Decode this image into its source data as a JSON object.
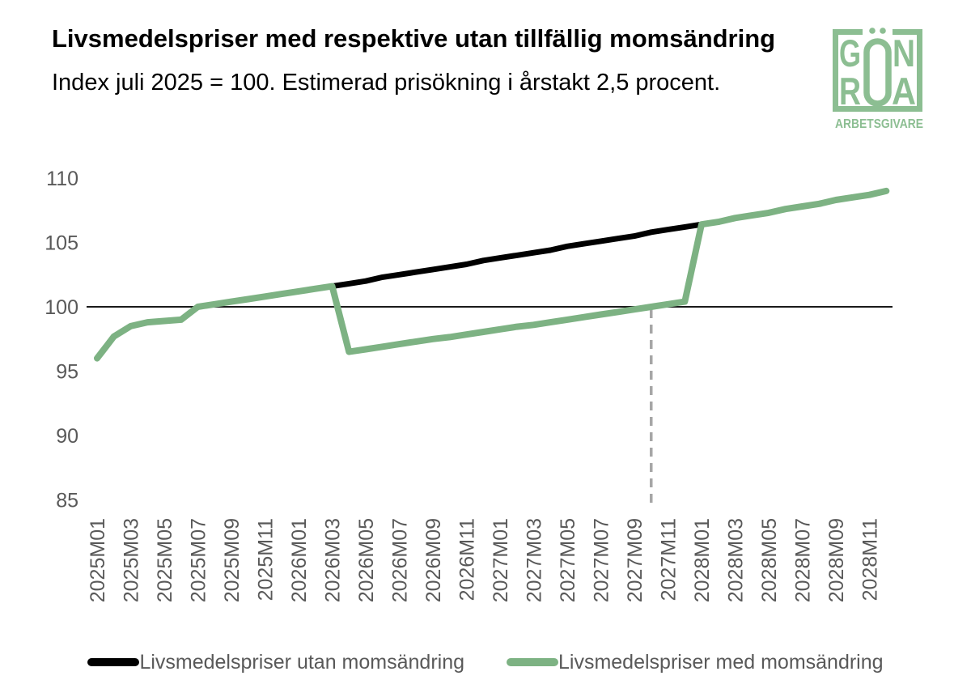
{
  "page": {
    "background": "#ffffff"
  },
  "header": {
    "title": "Livsmedelspriser med respektive utan tillfällig momsändring",
    "subtitle": "Index juli 2025 = 100. Estimerad prisökning i årstakt 2,5 procent."
  },
  "logo": {
    "color": "#8CBE92",
    "word": "GRÖNA",
    "box_letters": {
      "top_left": "G",
      "top_right": "N",
      "bottom_left": "R",
      "bottom_right": "A",
      "center": "Ö"
    },
    "subtext": "ARBETSGIVARE"
  },
  "chart_data": {
    "type": "line",
    "title": "Livsmedelspriser med respektive utan tillfällig momsändring",
    "subtitle": "Index juli 2025 = 100. Estimerad prisökning i årstakt 2,5 procent.",
    "x_first_month": "2025M01",
    "x_last_month": "2028M12",
    "months_total": 48,
    "x_tick_labels": [
      "2025M01",
      "2025M03",
      "2025M05",
      "2025M07",
      "2025M09",
      "2025M11",
      "2026M01",
      "2026M03",
      "2026M05",
      "2026M07",
      "2026M09",
      "2026M11",
      "2027M01",
      "2027M03",
      "2027M05",
      "2027M07",
      "2027M09",
      "2027M11",
      "2028M01",
      "2028M03",
      "2028M05",
      "2028M07",
      "2028M09",
      "2028M11"
    ],
    "y_ticks": [
      110,
      105,
      100,
      95,
      90,
      85
    ],
    "ylim": [
      84,
      111
    ],
    "baseline_value": 100,
    "grid": "off",
    "legend_position": "bottom",
    "axis_text_color": "#595959",
    "dashed_marker": {
      "month_index": 33,
      "month": "2027M10",
      "color": "#A6A6A6"
    },
    "series": [
      {
        "name": "Livsmedelspriser utan momsändring",
        "color": "#000000",
        "stroke_width": 7,
        "start_month_index": 14,
        "values": [
          101.6,
          101.8,
          102.0,
          102.3,
          102.5,
          102.7,
          102.9,
          103.1,
          103.3,
          103.6,
          103.8,
          104.0,
          104.2,
          104.4,
          104.7,
          104.9,
          105.1,
          105.3,
          105.5,
          105.8,
          106.0,
          106.2,
          106.4
        ]
      },
      {
        "name": "Livsmedelspriser med momsändring",
        "color": "#7DB283",
        "stroke_width": 8,
        "start_month_index": 0,
        "values": [
          96.0,
          97.7,
          98.5,
          98.8,
          98.9,
          99.0,
          100.0,
          100.2,
          100.4,
          100.6,
          100.8,
          101.0,
          101.2,
          101.4,
          101.6,
          96.5,
          96.7,
          96.9,
          97.1,
          97.3,
          97.5,
          97.65,
          97.85,
          98.05,
          98.25,
          98.45,
          98.6,
          98.8,
          99.0,
          99.2,
          99.4,
          99.6,
          99.8,
          100.0,
          100.2,
          100.4,
          106.4,
          106.6,
          106.9,
          107.1,
          107.3,
          107.6,
          107.8,
          108.0,
          108.3,
          108.5,
          108.7,
          109.0
        ]
      }
    ]
  }
}
